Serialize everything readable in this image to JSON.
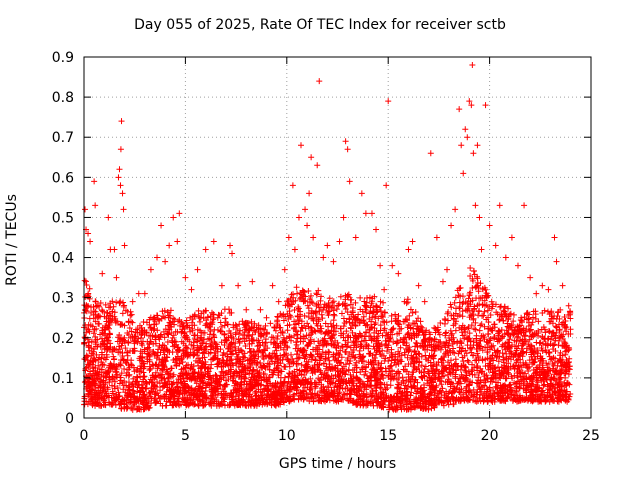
{
  "chart_data": {
    "type": "scatter",
    "title": "Day 055 of 2025, Rate Of TEC Index for receiver sctb",
    "xlabel": "GPS time / hours",
    "ylabel": "ROTI / TECUs",
    "xlim": [
      0,
      25
    ],
    "ylim": [
      0,
      0.9
    ],
    "xticks": [
      0,
      5,
      10,
      15,
      20,
      25
    ],
    "yticks": [
      0,
      0.1,
      0.2,
      0.3,
      0.4,
      0.5,
      0.6,
      0.7,
      0.8,
      0.9
    ],
    "x_tick_labels": [
      "0",
      "5",
      "10",
      "15",
      "20",
      "25"
    ],
    "y_tick_labels": [
      "0",
      "0.1",
      "0.2",
      "0.3",
      "0.4",
      "0.5",
      "0.6",
      "0.7",
      "0.8",
      "0.9"
    ],
    "grid": true,
    "legend": "none",
    "marker": "plus",
    "color": "#ff0000",
    "points": [
      [
        0.05,
        0.52
      ],
      [
        0.1,
        0.47
      ],
      [
        0.2,
        0.46
      ],
      [
        0.3,
        0.44
      ],
      [
        0.5,
        0.59
      ],
      [
        0.55,
        0.53
      ],
      [
        0.9,
        0.36
      ],
      [
        1.2,
        0.5
      ],
      [
        1.3,
        0.42
      ],
      [
        1.5,
        0.42
      ],
      [
        1.6,
        0.35
      ],
      [
        1.7,
        0.6
      ],
      [
        1.75,
        0.62
      ],
      [
        1.8,
        0.58
      ],
      [
        1.82,
        0.67
      ],
      [
        1.85,
        0.74
      ],
      [
        1.9,
        0.56
      ],
      [
        1.95,
        0.52
      ],
      [
        2.0,
        0.43
      ],
      [
        2.4,
        0.29
      ],
      [
        2.7,
        0.31
      ],
      [
        3.0,
        0.31
      ],
      [
        3.3,
        0.37
      ],
      [
        3.6,
        0.4
      ],
      [
        3.8,
        0.48
      ],
      [
        4.0,
        0.39
      ],
      [
        4.2,
        0.43
      ],
      [
        4.4,
        0.5
      ],
      [
        4.7,
        0.51
      ],
      [
        4.6,
        0.44
      ],
      [
        5.0,
        0.35
      ],
      [
        5.3,
        0.32
      ],
      [
        5.6,
        0.37
      ],
      [
        6.0,
        0.42
      ],
      [
        6.4,
        0.44
      ],
      [
        6.8,
        0.33
      ],
      [
        7.2,
        0.43
      ],
      [
        7.3,
        0.41
      ],
      [
        7.6,
        0.33
      ],
      [
        8.0,
        0.27
      ],
      [
        8.3,
        0.34
      ],
      [
        8.7,
        0.27
      ],
      [
        9.0,
        0.25
      ],
      [
        9.3,
        0.33
      ],
      [
        9.6,
        0.29
      ],
      [
        9.9,
        0.37
      ],
      [
        10.1,
        0.45
      ],
      [
        10.3,
        0.58
      ],
      [
        10.4,
        0.42
      ],
      [
        10.6,
        0.5
      ],
      [
        10.7,
        0.68
      ],
      [
        10.9,
        0.52
      ],
      [
        11.0,
        0.48
      ],
      [
        11.1,
        0.56
      ],
      [
        11.2,
        0.65
      ],
      [
        11.3,
        0.45
      ],
      [
        11.5,
        0.63
      ],
      [
        11.6,
        0.84
      ],
      [
        11.8,
        0.4
      ],
      [
        12.0,
        0.43
      ],
      [
        12.3,
        0.39
      ],
      [
        12.6,
        0.44
      ],
      [
        12.8,
        0.5
      ],
      [
        12.9,
        0.69
      ],
      [
        13.0,
        0.67
      ],
      [
        13.1,
        0.59
      ],
      [
        13.4,
        0.45
      ],
      [
        13.7,
        0.56
      ],
      [
        13.9,
        0.51
      ],
      [
        14.2,
        0.51
      ],
      [
        14.4,
        0.47
      ],
      [
        14.6,
        0.38
      ],
      [
        14.8,
        0.32
      ],
      [
        14.9,
        0.58
      ],
      [
        15.0,
        0.79
      ],
      [
        15.2,
        0.38
      ],
      [
        15.5,
        0.36
      ],
      [
        15.8,
        0.29
      ],
      [
        16.0,
        0.42
      ],
      [
        16.2,
        0.44
      ],
      [
        16.5,
        0.33
      ],
      [
        16.8,
        0.29
      ],
      [
        17.1,
        0.66
      ],
      [
        17.4,
        0.45
      ],
      [
        17.7,
        0.34
      ],
      [
        17.9,
        0.37
      ],
      [
        18.1,
        0.48
      ],
      [
        18.3,
        0.52
      ],
      [
        18.5,
        0.77
      ],
      [
        18.6,
        0.68
      ],
      [
        18.7,
        0.61
      ],
      [
        18.8,
        0.72
      ],
      [
        18.9,
        0.7
      ],
      [
        19.0,
        0.79
      ],
      [
        19.1,
        0.78
      ],
      [
        19.15,
        0.88
      ],
      [
        19.2,
        0.66
      ],
      [
        19.3,
        0.53
      ],
      [
        19.4,
        0.68
      ],
      [
        19.5,
        0.5
      ],
      [
        19.6,
        0.42
      ],
      [
        19.8,
        0.78
      ],
      [
        20.0,
        0.48
      ],
      [
        20.3,
        0.43
      ],
      [
        20.5,
        0.53
      ],
      [
        20.8,
        0.4
      ],
      [
        21.1,
        0.45
      ],
      [
        21.4,
        0.38
      ],
      [
        21.7,
        0.53
      ],
      [
        22.0,
        0.35
      ],
      [
        22.3,
        0.31
      ],
      [
        22.6,
        0.33
      ],
      [
        22.9,
        0.32
      ],
      [
        23.2,
        0.45
      ],
      [
        23.3,
        0.39
      ],
      [
        23.6,
        0.33
      ],
      [
        23.9,
        0.28
      ]
    ],
    "envelope_hours": [
      0,
      0.5,
      1,
      1.5,
      2,
      2.5,
      3,
      3.5,
      4,
      4.5,
      5,
      5.5,
      6,
      6.5,
      7,
      7.5,
      8,
      8.5,
      9,
      9.5,
      10,
      10.5,
      11,
      11.5,
      12,
      12.5,
      13,
      13.5,
      14,
      14.5,
      15,
      15.5,
      16,
      16.5,
      17,
      17.5,
      18,
      18.5,
      19,
      19.5,
      20,
      20.5,
      21,
      21.5,
      22,
      22.5,
      23,
      23.5,
      24
    ],
    "envelope_upper": [
      0.36,
      0.3,
      0.28,
      0.3,
      0.3,
      0.25,
      0.24,
      0.26,
      0.28,
      0.26,
      0.24,
      0.27,
      0.27,
      0.26,
      0.28,
      0.25,
      0.24,
      0.24,
      0.23,
      0.25,
      0.3,
      0.33,
      0.32,
      0.32,
      0.3,
      0.3,
      0.31,
      0.3,
      0.31,
      0.3,
      0.28,
      0.26,
      0.3,
      0.25,
      0.23,
      0.23,
      0.28,
      0.33,
      0.38,
      0.36,
      0.3,
      0.28,
      0.28,
      0.26,
      0.27,
      0.27,
      0.27,
      0.27,
      0.27
    ],
    "envelope_lower": [
      0.03,
      0.03,
      0.03,
      0.03,
      0.02,
      0.02,
      0.02,
      0.03,
      0.03,
      0.03,
      0.03,
      0.03,
      0.03,
      0.03,
      0.03,
      0.03,
      0.03,
      0.03,
      0.03,
      0.03,
      0.04,
      0.04,
      0.04,
      0.04,
      0.04,
      0.04,
      0.04,
      0.03,
      0.03,
      0.03,
      0.02,
      0.02,
      0.02,
      0.02,
      0.02,
      0.03,
      0.03,
      0.04,
      0.04,
      0.04,
      0.04,
      0.04,
      0.04,
      0.04,
      0.04,
      0.04,
      0.04,
      0.04,
      0.04
    ],
    "data_span_hours": [
      0,
      24
    ]
  }
}
